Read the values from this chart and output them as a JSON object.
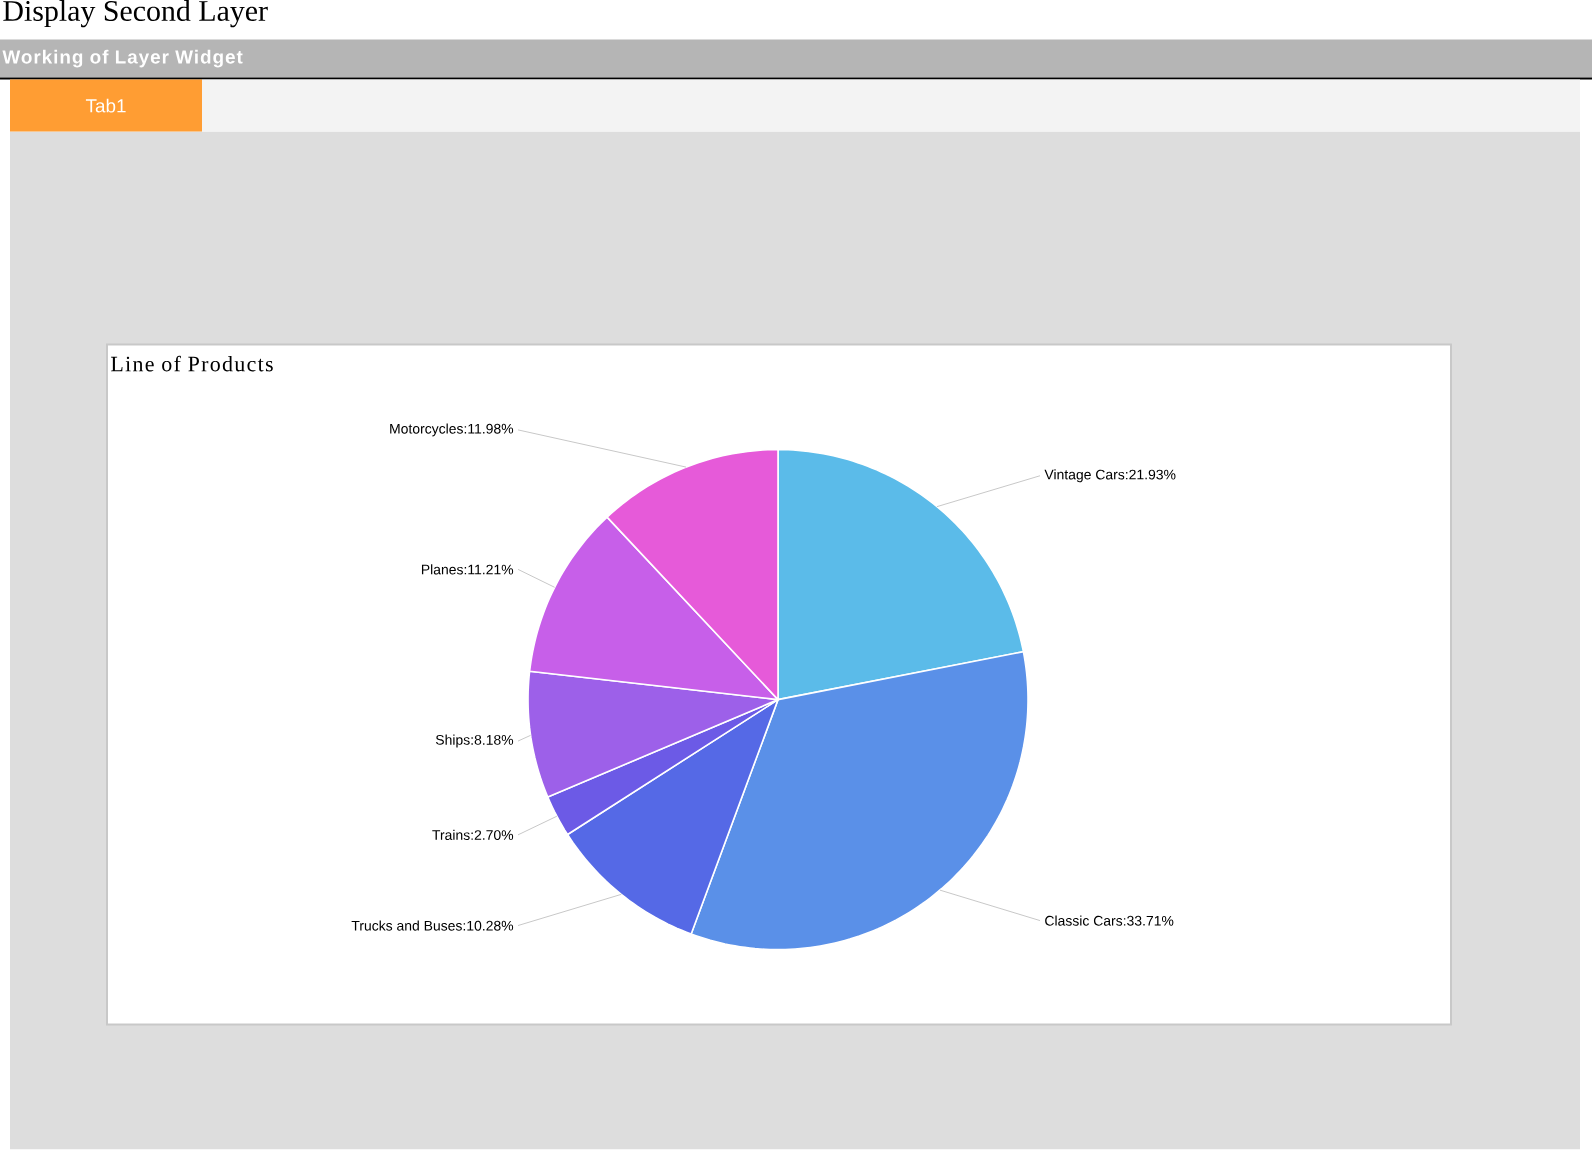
{
  "chart_data": {
    "type": "pie",
    "title": "Line of Products",
    "categories": [
      "Vintage Cars",
      "Classic Cars",
      "Trucks and Buses",
      "Trains",
      "Ships",
      "Planes",
      "Motorcycles"
    ],
    "values": [
      21.93,
      33.71,
      10.28,
      2.7,
      8.18,
      11.21,
      11.98
    ],
    "value_labels": [
      ":21.93%",
      ":33.71%",
      ":10.28%",
      ":2.70%",
      ":8.18%",
      ":11.21%",
      ":11.98%"
    ],
    "colors": [
      "#5bbbe9",
      "#5a90e8",
      "#5569e6",
      "#6c5ae6",
      "#9d60e9",
      "#c75fe9",
      "#e65ad9"
    ],
    "annotations": [
      "Display Second Layer",
      "Working of Layer Widget",
      "Tab1"
    ]
  }
}
